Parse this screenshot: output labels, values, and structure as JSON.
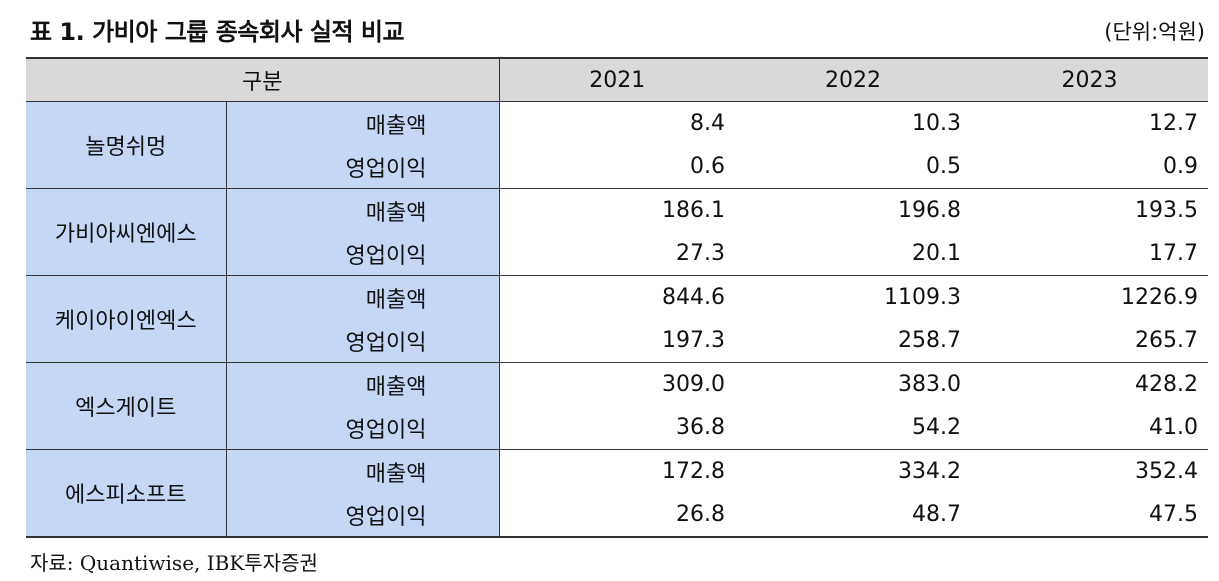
{
  "title": "표 1. 가비아 그룹 종속회사 실적 비교",
  "unit": "(단위:억원)",
  "header": {
    "group": "구분",
    "years": [
      "2021",
      "2022",
      "2023"
    ]
  },
  "rows": [
    {
      "company": "놀명쉬멍",
      "metrics": [
        {
          "label": "매출액",
          "values": [
            "8.4",
            "10.3",
            "12.7"
          ]
        },
        {
          "label": "영업이익",
          "values": [
            "0.6",
            "0.5",
            "0.9"
          ]
        }
      ]
    },
    {
      "company": "가비아씨엔에스",
      "metrics": [
        {
          "label": "매출액",
          "values": [
            "186.1",
            "196.8",
            "193.5"
          ]
        },
        {
          "label": "영업이익",
          "values": [
            "27.3",
            "20.1",
            "17.7"
          ]
        }
      ]
    },
    {
      "company": "케이아이엔엑스",
      "metrics": [
        {
          "label": "매출액",
          "values": [
            "844.6",
            "1109.3",
            "1226.9"
          ]
        },
        {
          "label": "영업이익",
          "values": [
            "197.3",
            "258.7",
            "265.7"
          ]
        }
      ]
    },
    {
      "company": "엑스게이트",
      "metrics": [
        {
          "label": "매출액",
          "values": [
            "309.0",
            "383.0",
            "428.2"
          ]
        },
        {
          "label": "영업이익",
          "values": [
            "36.8",
            "54.2",
            "41.0"
          ]
        }
      ]
    },
    {
      "company": "에스피소프트",
      "metrics": [
        {
          "label": "매출액",
          "values": [
            "172.8",
            "334.2",
            "352.4"
          ]
        },
        {
          "label": "영업이익",
          "values": [
            "26.8",
            "48.7",
            "47.5"
          ]
        }
      ]
    }
  ],
  "source": "자료: Quantiwise, IBK투자증권"
}
